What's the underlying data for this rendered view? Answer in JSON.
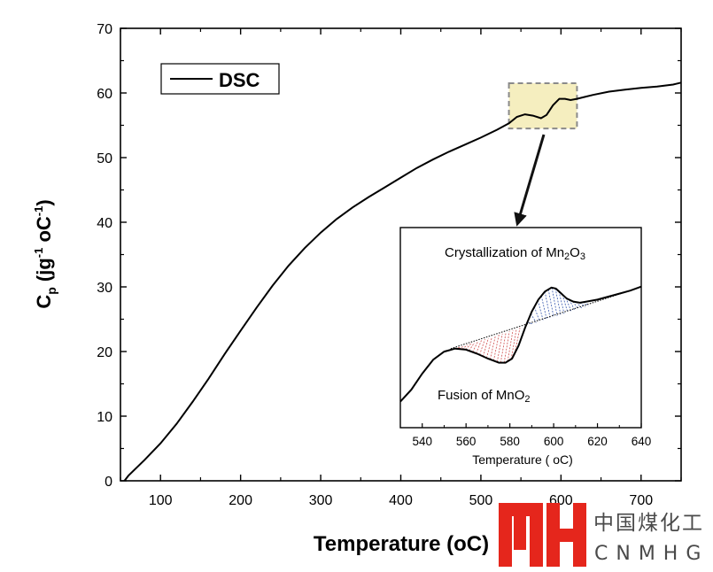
{
  "chart_data": [
    {
      "type": "line",
      "xlabel_main": "Temperature (",
      "xlabel_unit": "oC)",
      "ylabel": {
        "base": "C",
        "sub": "p",
        "mid": " (jg",
        "sup1": "-1",
        "deg": " oC",
        "sup2": "-1",
        "end": ")"
      },
      "xlim": [
        50,
        750
      ],
      "ylim": [
        0,
        70
      ],
      "xticks": [
        100,
        200,
        300,
        400,
        500,
        600,
        700
      ],
      "yticks": [
        0,
        10,
        20,
        30,
        40,
        50,
        60,
        70
      ],
      "legend": {
        "label": "DSC",
        "placement": "top-left"
      },
      "series": [
        {
          "name": "DSC",
          "x": [
            55,
            60,
            80,
            100,
            120,
            140,
            160,
            180,
            200,
            220,
            240,
            260,
            280,
            300,
            320,
            340,
            360,
            380,
            400,
            420,
            440,
            460,
            480,
            500,
            520,
            535,
            545,
            555,
            565,
            575,
            582,
            590,
            598,
            605,
            612,
            620,
            630,
            640,
            660,
            680,
            700,
            720,
            740,
            750
          ],
          "y": [
            0,
            0.8,
            3.2,
            5.8,
            8.8,
            12.2,
            15.8,
            19.6,
            23.2,
            26.8,
            30.2,
            33.3,
            36.0,
            38.4,
            40.5,
            42.3,
            43.9,
            45.4,
            46.9,
            48.4,
            49.7,
            50.9,
            52.0,
            53.1,
            54.3,
            55.3,
            56.3,
            56.7,
            56.5,
            56.1,
            56.6,
            58.1,
            59.1,
            59.1,
            58.9,
            59.1,
            59.4,
            59.7,
            60.2,
            60.5,
            60.8,
            61.0,
            61.3,
            61.6
          ]
        }
      ],
      "highlight_region": {
        "x": [
          535,
          620
        ],
        "y": [
          54.5,
          61.5
        ],
        "color": "#f5eebf"
      }
    },
    {
      "type": "line",
      "xlabel_main": "Temperature ( ",
      "xlabel_unit": "oC)",
      "xlim": [
        530,
        640
      ],
      "xticks": [
        540,
        560,
        580,
        600,
        620,
        640
      ],
      "annotations": [
        {
          "text_main": "Crystallization of Mn",
          "sub1": "2",
          "mid": "O",
          "sub2": "3"
        },
        {
          "text_main": "Fusion of MnO",
          "sub1": "2"
        }
      ],
      "series": [
        {
          "name": "DSC",
          "x": [
            530,
            535,
            540,
            545,
            550,
            555,
            560,
            565,
            570,
            575,
            578,
            581,
            584,
            587,
            590,
            593,
            596,
            599,
            601,
            603,
            606,
            609,
            612,
            615,
            620,
            625,
            630,
            635,
            640
          ],
          "y": [
            0.13,
            0.19,
            0.27,
            0.34,
            0.38,
            0.395,
            0.39,
            0.37,
            0.345,
            0.325,
            0.325,
            0.345,
            0.41,
            0.5,
            0.58,
            0.64,
            0.68,
            0.7,
            0.695,
            0.675,
            0.645,
            0.63,
            0.625,
            0.63,
            0.64,
            0.655,
            0.67,
            0.685,
            0.705
          ]
        }
      ],
      "baseline": {
        "x": [
          553,
          635
        ],
        "y": [
          0.395,
          0.685
        ]
      },
      "fill_colors": {
        "fusion": "#d05050",
        "crystallization": "#3b5bb0"
      }
    }
  ],
  "watermark": {
    "logo_letters": "MH",
    "cn": "中国煤化工",
    "en": "CNMHG",
    "logo_color": "#e5261c"
  },
  "colors": {
    "highlight_border": "#8a8a8a",
    "arrow": "#111111",
    "line": "#000000"
  }
}
